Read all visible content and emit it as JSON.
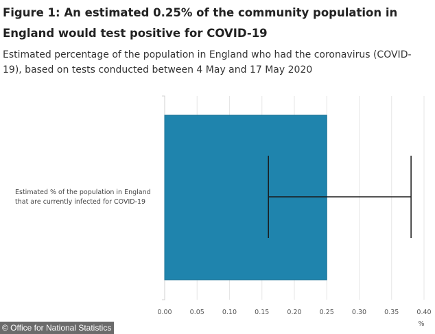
{
  "title": "Figure 1: An estimated 0.25% of the community population in England would test positive for COVID-19",
  "subtitle": "Estimated percentage of the population in England who had the coronavirus (COVID-19), based on tests conducted between 4 May and 17 May 2020",
  "source": "© Office for National Statistics",
  "colors": {
    "bar": "#1f84ad",
    "bar_border": "#176f93",
    "gridline": "#e6e6e6",
    "error_bar": "#1a1a1a"
  },
  "chart_data": {
    "type": "bar",
    "orientation": "horizontal",
    "categories": [
      "Estimated % of the population in England that are currently infected for COVID-19"
    ],
    "values": [
      0.25
    ],
    "error_bars": [
      {
        "lower": 0.16,
        "upper": 0.38
      }
    ],
    "xlabel": "%",
    "xlim": [
      0,
      0.4
    ],
    "xticks": [
      "0.00",
      "0.05",
      "0.10",
      "0.15",
      "0.20",
      "0.25",
      "0.30",
      "0.35",
      "0.40"
    ],
    "grid": true
  }
}
